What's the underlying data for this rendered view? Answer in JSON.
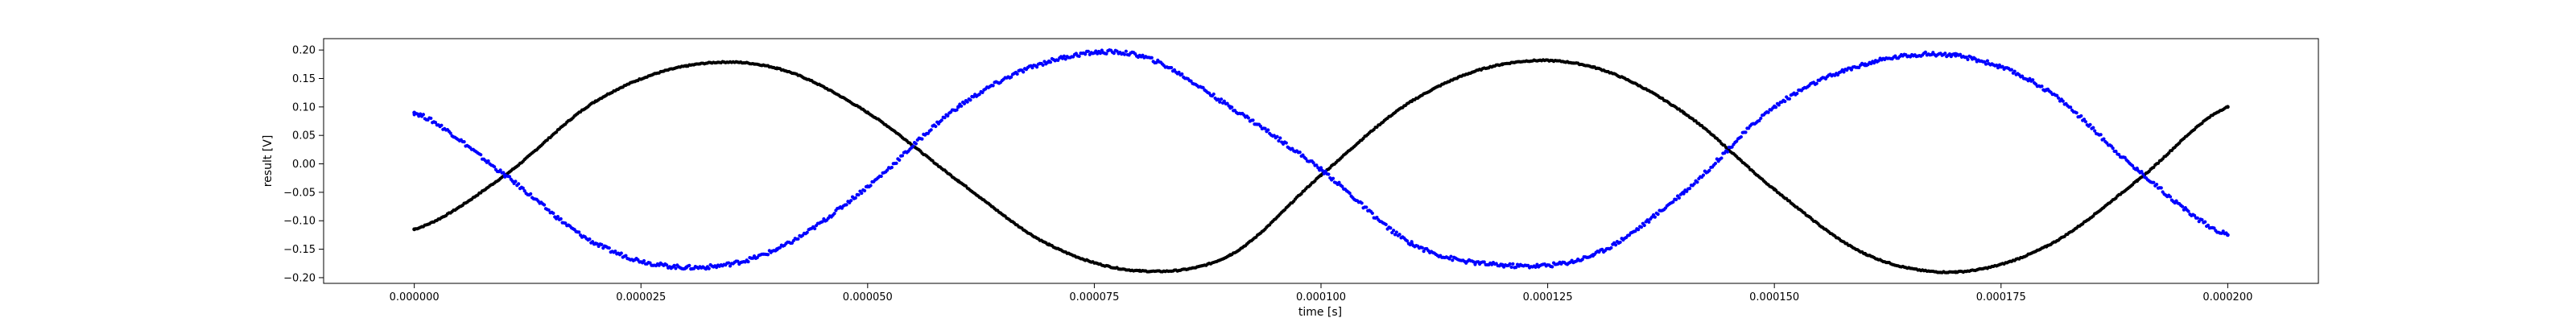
{
  "chart_data": {
    "type": "scatter",
    "xlabel": "time [s]",
    "ylabel": "result [V]",
    "xlim": [
      -1e-05,
      0.00021
    ],
    "ylim": [
      -0.21,
      0.22
    ],
    "x_ticks": [
      0,
      2.5e-05,
      5e-05,
      7.5e-05,
      0.0001,
      0.000125,
      0.00015,
      0.000175,
      0.0002
    ],
    "x_tick_labels": [
      "0.000000",
      "0.000025",
      "0.000050",
      "0.000075",
      "0.000100",
      "0.000125",
      "0.000150",
      "0.000175",
      "0.000200"
    ],
    "y_ticks": [
      -0.2,
      -0.15,
      -0.1,
      -0.05,
      0.0,
      0.05,
      0.1,
      0.15,
      0.2
    ],
    "y_tick_labels": [
      "−0.20",
      "−0.15",
      "−0.10",
      "−0.05",
      "0.00",
      "0.05",
      "0.10",
      "0.15",
      "0.20"
    ],
    "grid": false,
    "series": [
      {
        "color": "#000000",
        "marker": "dot",
        "x": [
          0.0,
          1e-05,
          2e-05,
          3e-05,
          4e-05,
          5e-05,
          6e-05,
          7e-05,
          8e-05,
          9e-05,
          0.0001,
          0.00011,
          0.00012,
          0.00013,
          0.00014,
          0.00015,
          0.00016,
          0.00017,
          0.00018,
          0.00019,
          0.0002
        ],
        "y": [
          -0.115,
          -0.02,
          0.11,
          0.172,
          0.168,
          0.09,
          -0.03,
          -0.142,
          -0.188,
          -0.16,
          -0.02,
          0.11,
          0.175,
          0.17,
          0.09,
          -0.045,
          -0.158,
          -0.19,
          -0.145,
          -0.03,
          0.1
        ]
      },
      {
        "color": "#0000ff",
        "marker": "dot",
        "x": [
          0.0,
          1e-05,
          2e-05,
          3e-05,
          4e-05,
          5e-05,
          6e-05,
          7e-05,
          8e-05,
          9e-05,
          0.0001,
          0.00011,
          0.00012,
          0.00013,
          0.00014,
          0.00015,
          0.00016,
          0.00017,
          0.00018,
          0.00019,
          0.0002
        ],
        "y": [
          0.09,
          -0.02,
          -0.14,
          -0.182,
          -0.15,
          -0.04,
          0.1,
          0.18,
          0.19,
          0.1,
          -0.01,
          -0.14,
          -0.178,
          -0.16,
          -0.05,
          0.1,
          0.175,
          0.19,
          0.13,
          -0.01,
          -0.125
        ]
      }
    ]
  }
}
